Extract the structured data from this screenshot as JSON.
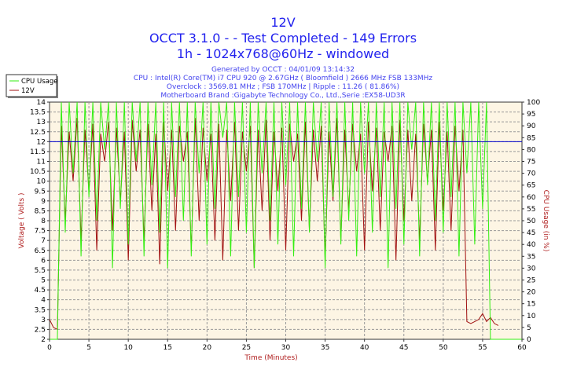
{
  "header": {
    "title": "12V",
    "line2": "OCCT 3.1.0 -  - Test Completed - 149 Errors",
    "line3": "1h - 1024x768@60Hz - windowed",
    "info": [
      "Generated by OCCT : 04/01/09 13:14:32",
      "CPU : Intel(R) Core(TM) i7 CPU 920 @ 2.67GHz ( Bloomfield ) 2666 MHz FSB 133MHz",
      "Overclock : 3569.81 MHz ; FSB 170MHz | Ripple : 11.26 ( 81.86%)",
      "Motherboard Brand :Gigabyte Technology Co., Ltd.,Serie :EX58-UD3R"
    ]
  },
  "chart_data": {
    "type": "line",
    "title": "12V",
    "xlabel": "Time (Minutes)",
    "ylabel": "Voltage ( Volts )",
    "y2label": "CPU Usage (in %)",
    "xlim": [
      0,
      60
    ],
    "ylim": [
      2,
      14
    ],
    "y2lim": [
      0,
      100
    ],
    "xticks": [
      0,
      5,
      10,
      15,
      20,
      25,
      30,
      35,
      40,
      45,
      50,
      55,
      60
    ],
    "yticks": [
      "2",
      "2.5",
      "3",
      "3.5",
      "4",
      "4.5",
      "5",
      "5.5",
      "6",
      "6.5",
      "7",
      "7.5",
      "8",
      "8.5",
      "9",
      "9.5",
      "10",
      "10.5",
      "11",
      "11.5",
      "12",
      "12.5",
      "13",
      "13.5",
      "14"
    ],
    "y2ticks": [
      "0",
      "5",
      "10",
      "15",
      "20",
      "25",
      "30",
      "35",
      "40",
      "45",
      "50",
      "55",
      "60",
      "65",
      "70",
      "75",
      "80",
      "85",
      "90",
      "95",
      "100"
    ],
    "grid": true,
    "legend_position": "top-left",
    "reference_line": {
      "value": 12,
      "color": "#0000cc"
    },
    "x_step": 0.5,
    "series": [
      {
        "name": "CPU Usage",
        "axis": "right",
        "color": "#33ee11",
        "values": [
          0,
          0,
          0,
          100,
          45,
          100,
          70,
          100,
          35,
          100,
          60,
          100,
          50,
          100,
          80,
          100,
          30,
          100,
          55,
          100,
          40,
          100,
          75,
          100,
          35,
          100,
          65,
          100,
          45,
          100,
          30,
          100,
          60,
          100,
          50,
          100,
          35,
          100,
          70,
          100,
          40,
          100,
          55,
          100,
          85,
          100,
          35,
          100,
          60,
          100,
          45,
          100,
          30,
          100,
          70,
          100,
          50,
          100,
          40,
          100,
          65,
          100,
          35,
          100,
          55,
          100,
          45,
          100,
          75,
          100,
          30,
          100,
          60,
          100,
          40,
          100,
          50,
          100,
          35,
          100,
          70,
          100,
          45,
          100,
          60,
          100,
          30,
          100,
          55,
          100,
          40,
          100,
          80,
          100,
          35,
          100,
          65,
          100,
          50,
          100,
          45,
          100,
          60,
          100,
          35,
          100,
          70,
          100,
          40,
          100,
          55,
          100,
          0,
          0,
          0,
          0,
          0,
          0,
          0,
          0,
          0
        ]
      },
      {
        "name": "12V",
        "axis": "left",
        "color": "#a01010",
        "values": [
          3.0,
          2.6,
          2.5,
          12.8,
          8,
          12.5,
          10,
          13.2,
          7,
          12.6,
          9.5,
          12.9,
          6.5,
          12.4,
          11,
          13,
          7.5,
          12.7,
          9,
          12.5,
          6,
          13.1,
          10.5,
          12.6,
          7,
          12.9,
          8.5,
          12.4,
          5.8,
          13,
          9.5,
          12.6,
          7.5,
          12.8,
          11,
          12.5,
          6.5,
          13.2,
          8,
          12.7,
          10,
          12.4,
          7,
          12.9,
          6,
          12.6,
          9,
          13,
          7.5,
          12.5,
          10.5,
          12.8,
          5.6,
          12.6,
          8.5,
          13.1,
          7,
          12.5,
          9.5,
          12.7,
          6.5,
          12.9,
          11,
          12.4,
          8,
          13,
          7.5,
          12.6,
          10,
          12.8,
          6,
          12.5,
          9,
          13.2,
          7,
          12.6,
          8.5,
          12.9,
          10.5,
          12.4,
          6.5,
          13,
          9.5,
          12.7,
          7.5,
          12.5,
          11,
          12.8,
          6,
          13.1,
          8,
          12.6,
          9,
          12.4,
          7,
          12.9,
          10,
          12.6,
          6.5,
          13,
          8.5,
          12.5,
          7.5,
          12.8,
          9.5,
          12.6,
          2.9,
          2.8,
          2.9,
          3.0,
          3.3,
          2.9,
          3.1,
          2.8,
          2.7
        ]
      }
    ]
  }
}
